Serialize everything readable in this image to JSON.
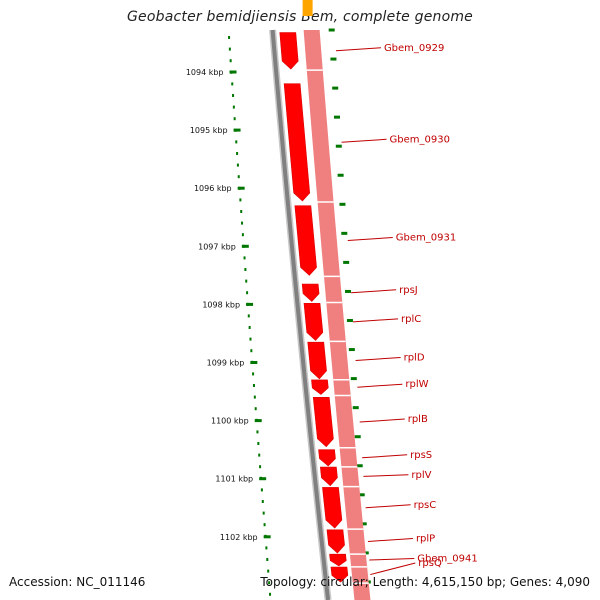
{
  "header": {
    "title": "Geobacter bemidjiensis Bem, complete genome"
  },
  "footer": {
    "accession": "Accession: NC_011146",
    "stats": "Topology: circular; Length: 4,615,150 bp; Genes: 4,090"
  },
  "colors": {
    "backbone": "#808080",
    "gene_fill": "#ff0000",
    "gene_light": "#f08080",
    "tick_green": "#007700",
    "label_red": "#c00000",
    "orange_gene": "#ffa500"
  },
  "scale": {
    "unit": "kbp",
    "ticks": [
      {
        "value": 1094,
        "label": "1094 kbp"
      },
      {
        "value": 1095,
        "label": "1095 kbp"
      },
      {
        "value": 1096,
        "label": "1096 kbp"
      },
      {
        "value": 1097,
        "label": "1097 kbp"
      },
      {
        "value": 1098,
        "label": "1098 kbp"
      },
      {
        "value": 1099,
        "label": "1099 kbp"
      },
      {
        "value": 1100,
        "label": "1100 kbp"
      },
      {
        "value": 1101,
        "label": "1101 kbp"
      },
      {
        "value": 1102,
        "label": "1102 kbp"
      }
    ]
  },
  "genes": [
    {
      "name": "Gbem_0929",
      "start_kbp": 1093.32,
      "end_kbp": 1093.95
    },
    {
      "name": "Gbem_0930",
      "start_kbp": 1094.2,
      "end_kbp": 1096.22
    },
    {
      "name": "Gbem_0931",
      "start_kbp": 1096.3,
      "end_kbp": 1097.5
    },
    {
      "name": "rpsJ",
      "start_kbp": 1097.65,
      "end_kbp": 1097.95
    },
    {
      "name": "rplC",
      "start_kbp": 1097.98,
      "end_kbp": 1098.62
    },
    {
      "name": "rplD",
      "start_kbp": 1098.65,
      "end_kbp": 1099.28
    },
    {
      "name": "rplW",
      "start_kbp": 1099.3,
      "end_kbp": 1099.55
    },
    {
      "name": "rplB",
      "start_kbp": 1099.6,
      "end_kbp": 1100.45
    },
    {
      "name": "rpsS",
      "start_kbp": 1100.5,
      "end_kbp": 1100.78
    },
    {
      "name": "rplV",
      "start_kbp": 1100.8,
      "end_kbp": 1101.12
    },
    {
      "name": "rpsC",
      "start_kbp": 1101.15,
      "end_kbp": 1101.85
    },
    {
      "name": "rplP",
      "start_kbp": 1101.88,
      "end_kbp": 1102.28
    },
    {
      "name": "Gbem_0941",
      "start_kbp": 1102.3,
      "end_kbp": 1102.5
    },
    {
      "name": "rpsQ",
      "start_kbp": 1102.52,
      "end_kbp": 1102.78
    }
  ]
}
